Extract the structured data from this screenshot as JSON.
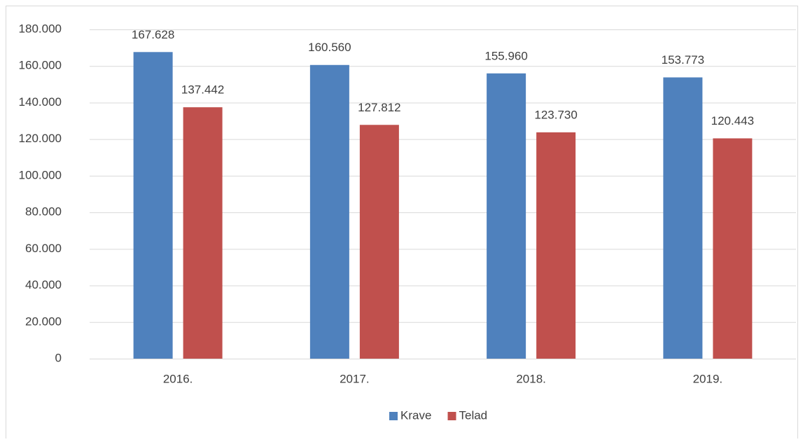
{
  "chart_data": {
    "type": "bar",
    "categories": [
      "2016.",
      "2017.",
      "2018.",
      "2019."
    ],
    "series": [
      {
        "name": "Krave",
        "color": "#4f81bd",
        "values": [
          167628,
          160560,
          155960,
          153773
        ],
        "value_labels": [
          "167.628",
          "160.560",
          "155.960",
          "153.773"
        ]
      },
      {
        "name": "Telad",
        "color": "#c0504d",
        "values": [
          137442,
          127812,
          123730,
          120443
        ],
        "value_labels": [
          "137.442",
          "127.812",
          "123.730",
          "120.443"
        ]
      }
    ],
    "ylim": [
      0,
      180000
    ],
    "yticks": [
      0,
      {
        "value": 20000,
        "label": "20.000"
      },
      {
        "value": 40000,
        "label": "40.000"
      },
      {
        "value": 60000,
        "label": "60.000"
      },
      {
        "value": 80000,
        "label": "80.000"
      },
      {
        "value": 100000,
        "label": "100.000"
      },
      {
        "value": 120000,
        "label": "120.000"
      },
      {
        "value": 140000,
        "label": "140.000"
      },
      {
        "value": 160000,
        "label": "160.000"
      },
      {
        "value": 180000,
        "label": "180.000"
      }
    ],
    "grid": true,
    "legend": "bottom"
  }
}
